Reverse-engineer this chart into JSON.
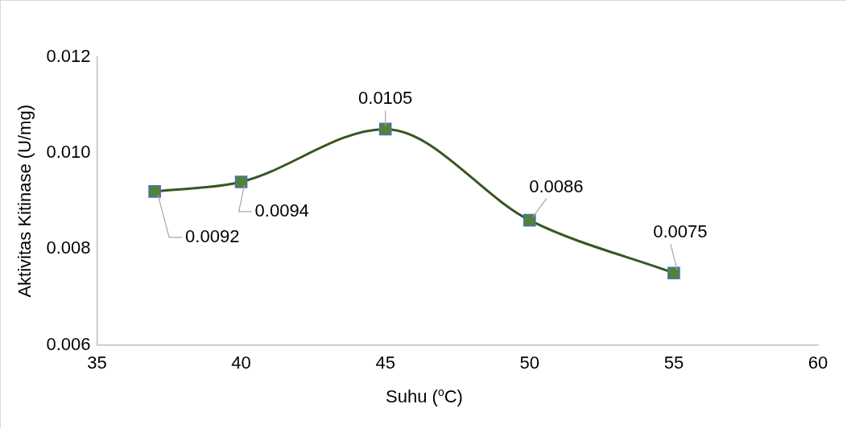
{
  "chart_data": {
    "type": "line",
    "xlabel": "Suhu ($^{o}$C)",
    "ylabel": "Aktivitas Kitinase (U/mg)",
    "x": [
      37,
      40,
      45,
      50,
      55
    ],
    "series": [
      {
        "color": "#375623",
        "values": [
          0.0092,
          0.0094,
          0.0105,
          0.0086,
          0.0075
        ]
      }
    ],
    "xlim": [
      35,
      60
    ],
    "xticks": [
      35,
      40,
      45,
      50,
      55,
      60
    ],
    "ylim": [
      0.006,
      0.012
    ],
    "yticks": [
      0.006,
      0.008,
      {
        "value": 0.01,
        "label": "0.010"
      },
      0.012
    ],
    "data_labels": true,
    "marker": "square",
    "line_style": "solid",
    "grid": false,
    "legend": false
  }
}
